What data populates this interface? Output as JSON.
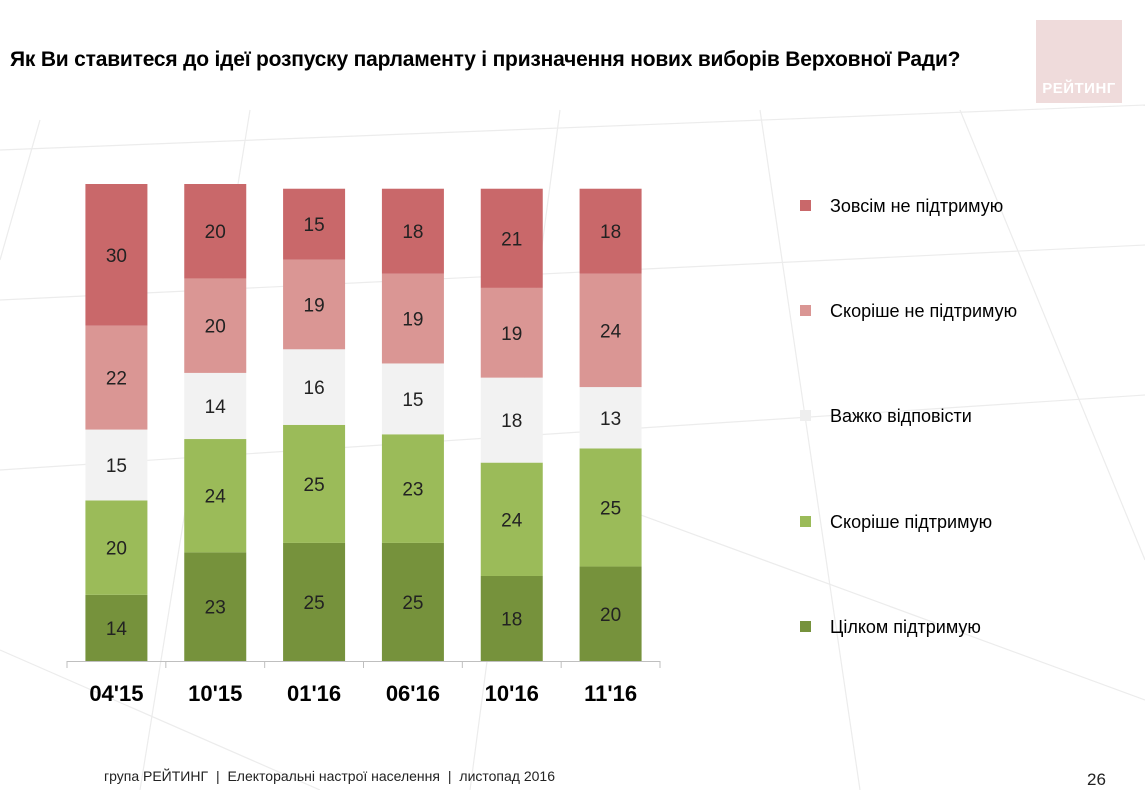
{
  "header": {
    "title": "Як Ви ставитеся до ідеї розпуску парламенту і призначення нових виборів Верховної Ради?",
    "logo_text": "РЕЙТИНГ"
  },
  "chart_data": {
    "type": "bar",
    "stacked": true,
    "categories": [
      "04'15",
      "10'15",
      "01'16",
      "06'16",
      "10'16",
      "11'16"
    ],
    "series": [
      {
        "name": "Цілком підтримую",
        "color": "#76923c",
        "values": [
          14,
          23,
          25,
          25,
          18,
          20
        ]
      },
      {
        "name": "Скоріше  підтримую",
        "color": "#9bbb59",
        "values": [
          20,
          24,
          25,
          23,
          24,
          25
        ]
      },
      {
        "name": "Важко відповісти",
        "color": "#f2f2f2",
        "values": [
          15,
          14,
          16,
          15,
          18,
          13
        ]
      },
      {
        "name": "Скоріше не підтримую",
        "color": "#da9694",
        "values": [
          22,
          20,
          19,
          19,
          19,
          24
        ]
      },
      {
        "name": "Зовсім не підтримую",
        "color": "#c9686a",
        "values": [
          30,
          20,
          15,
          18,
          21,
          18
        ]
      }
    ],
    "legend_order": [
      "Зовсім не підтримую",
      "Скоріше не підтримую",
      "Важко відповісти",
      "Скоріше  підтримую",
      "Цілком підтримую"
    ],
    "legend_position": "right",
    "grid": false,
    "ylim": [
      0,
      101
    ]
  },
  "footer": {
    "org": "група РЕЙТИНГ",
    "topic": "Електоральні настрої населення",
    "date": "листопад 2016",
    "sep": "|",
    "page": "26"
  }
}
